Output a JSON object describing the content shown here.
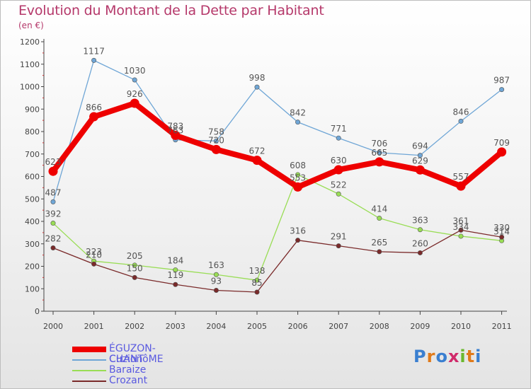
{
  "title": "Evolution du Montant de la Dette par Habitant",
  "subtitle": "(en €)",
  "chart_data": {
    "type": "line",
    "title": "Evolution du Montant de la Dette par Habitant",
    "subtitle": "(en €)",
    "x": [
      "2000",
      "2001",
      "2002",
      "2003",
      "2004",
      "2005",
      "2006",
      "2007",
      "2008",
      "2009",
      "2010",
      "2011"
    ],
    "ylim": [
      0,
      1200
    ],
    "yticks": [
      "0",
      "100",
      "200",
      "300",
      "400",
      "500",
      "600",
      "700",
      "800",
      "900",
      "1000",
      "1100",
      "1200"
    ],
    "grid": false,
    "legend_position": "bottom-left",
    "series": [
      {
        "name": "ÉGUZON-CHANTôME",
        "color": "#ee0000",
        "values": [
          623,
          866,
          926,
          783,
          720,
          672,
          553,
          630,
          665,
          629,
          557,
          709
        ],
        "labels": [
          "623",
          "866",
          "926",
          "783",
          "720",
          "672",
          "553",
          "630",
          "665",
          "629",
          "557",
          "709"
        ]
      },
      {
        "name": "Cuzion",
        "color": "#6fa6d6",
        "values": [
          487,
          1117,
          1030,
          763,
          758,
          998,
          842,
          771,
          706,
          694,
          846,
          987
        ],
        "labels": [
          "487",
          "1117",
          "1030",
          "763",
          "758",
          "998",
          "842",
          "771",
          "706",
          "694",
          "846",
          "987"
        ]
      },
      {
        "name": "Baraize",
        "color": "#99dd55",
        "values": [
          392,
          223,
          205,
          184,
          163,
          138,
          608,
          522,
          414,
          363,
          334,
          314
        ],
        "labels": [
          "392",
          "223",
          "205",
          "184",
          "163",
          "138",
          "608",
          "522",
          "414",
          "363",
          "334",
          "314"
        ]
      },
      {
        "name": "Crozant",
        "color": "#7a2a2a",
        "values": [
          282,
          210,
          150,
          119,
          93,
          85,
          316,
          291,
          265,
          260,
          361,
          330
        ],
        "labels": [
          "282",
          "210",
          "150",
          "119",
          "93",
          "85",
          "316",
          "291",
          "265",
          "260",
          "361",
          "330"
        ]
      }
    ]
  },
  "logo": {
    "text": "Proxiti",
    "letters": [
      "P",
      "r",
      "o",
      "x",
      "i",
      "t",
      "i"
    ],
    "colors": [
      "#3a7fd0",
      "#e07a1a",
      "#3a7fd0",
      "#d02a6a",
      "#6ab82e",
      "#e07a1a",
      "#3a7fd0"
    ]
  }
}
